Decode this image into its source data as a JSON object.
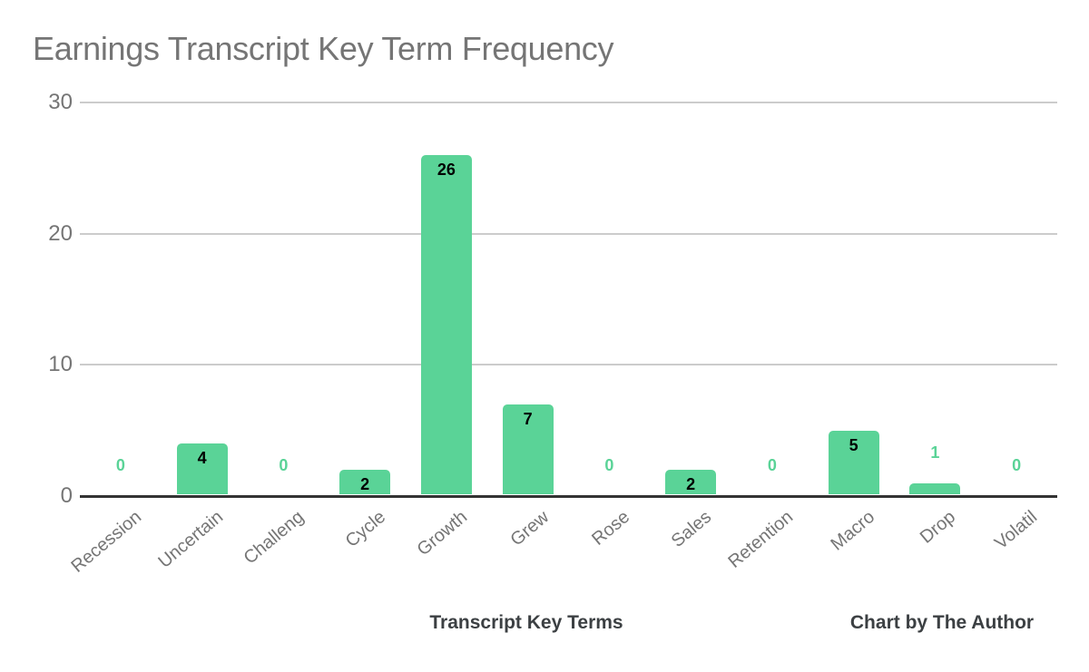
{
  "chart_data": {
    "type": "bar",
    "title": "Earnings Transcript Key Term Frequency",
    "categories": [
      "Recession",
      "Uncertain",
      "Challeng",
      "Cycle",
      "Growth",
      "Grew",
      "Rose",
      "Sales",
      "Retention",
      "Macro",
      "Drop",
      "Volatil"
    ],
    "values": [
      0,
      4,
      0,
      2,
      26,
      7,
      0,
      2,
      0,
      5,
      1,
      0
    ],
    "xlabel": "Transcript Key Terms",
    "attribution": "Chart by The Author",
    "ylabel": "",
    "ylim": [
      0,
      30
    ],
    "yticks": [
      0,
      10,
      20,
      30
    ],
    "grid": true,
    "legend_position": "none",
    "colors": {
      "bar": "#5ad397",
      "label_inside": "#000000",
      "label_outside": "#5ad397",
      "gridline": "#cccccc",
      "axis_line": "#333333",
      "tick_text": "#757575",
      "title_text": "#757575",
      "axis_title_text": "#3c4043"
    }
  }
}
